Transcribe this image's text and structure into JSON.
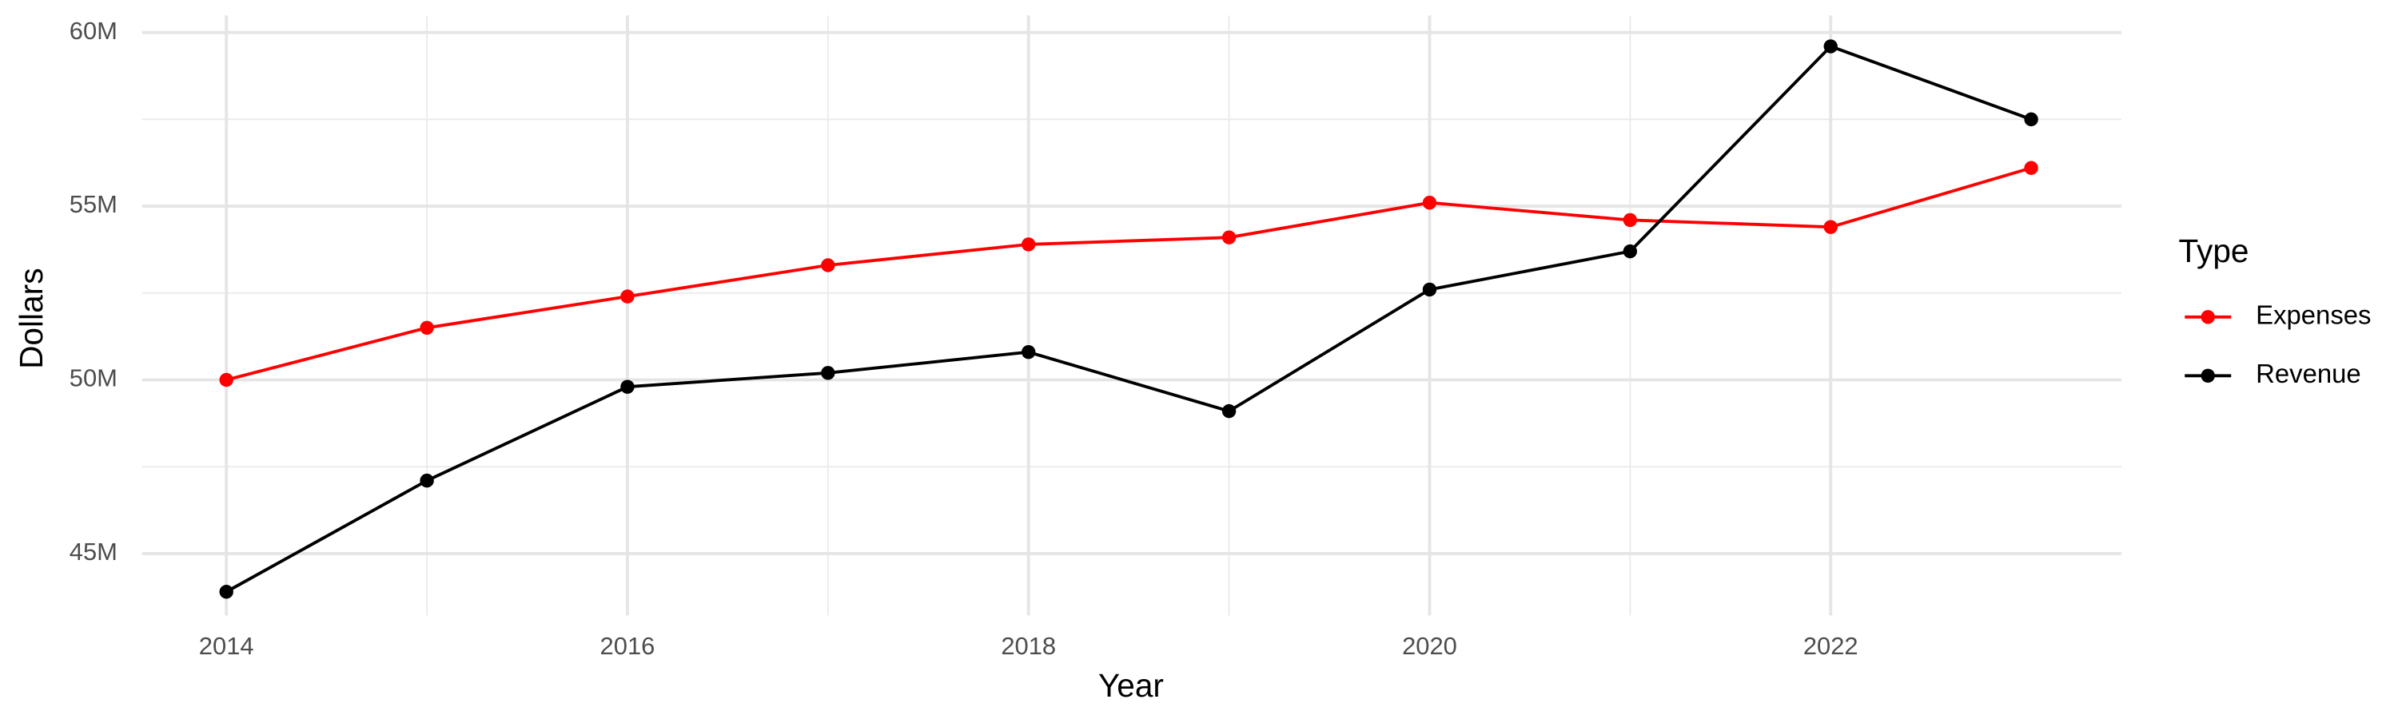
{
  "chart_data": {
    "type": "line",
    "x_label": "Year",
    "y_label": "Dollars",
    "legend_title": "Type",
    "x": [
      2014,
      2015,
      2016,
      2017,
      2018,
      2019,
      2020,
      2021,
      2022,
      2023
    ],
    "series": [
      {
        "name": "Expenses",
        "color": "#ff0000",
        "values": [
          50000000,
          51500000,
          52400000,
          53300000,
          53900000,
          54100000,
          55100000,
          54600000,
          54400000,
          56100000
        ]
      },
      {
        "name": "Revenue",
        "color": "#000000",
        "values": [
          43900000,
          47100000,
          49800000,
          50200000,
          50800000,
          49100000,
          52600000,
          53700000,
          59600000,
          57500000
        ]
      }
    ],
    "xlim": [
      2013.58,
      2023.45
    ],
    "xticks": [
      2014,
      2016,
      2018,
      2020,
      2022
    ],
    "ylim": [
      43220000,
      60490000
    ],
    "yticks": [
      {
        "value": 45000000,
        "label": "45M"
      },
      {
        "value": 50000000,
        "label": "50M"
      },
      {
        "value": 55000000,
        "label": "55M"
      },
      {
        "value": 60000000,
        "label": "60M"
      }
    ],
    "grid": true,
    "legend": "right"
  }
}
